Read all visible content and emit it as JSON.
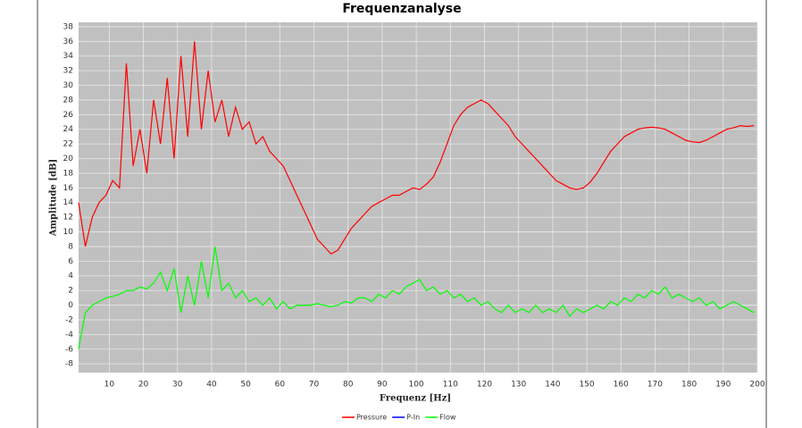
{
  "chart_data": {
    "type": "line",
    "title": "Frequenzanalyse",
    "x_label": "Frequenz [Hz]",
    "y_label": "Amplitude [dB]",
    "x": [
      1,
      3,
      5,
      7,
      9,
      11,
      13,
      15,
      17,
      19,
      21,
      23,
      25,
      27,
      29,
      31,
      33,
      35,
      37,
      39,
      41,
      43,
      45,
      47,
      49,
      51,
      53,
      55,
      57,
      59,
      61,
      63,
      65,
      67,
      69,
      71,
      73,
      75,
      77,
      79,
      81,
      83,
      85,
      87,
      89,
      91,
      93,
      95,
      97,
      99,
      101,
      103,
      105,
      107,
      109,
      111,
      113,
      115,
      117,
      119,
      121,
      123,
      125,
      127,
      129,
      131,
      133,
      135,
      137,
      139,
      141,
      143,
      145,
      147,
      149,
      151,
      153,
      155,
      157,
      159,
      161,
      163,
      165,
      167,
      169,
      171,
      173,
      175,
      177,
      179,
      181,
      183,
      185,
      187,
      189,
      191,
      193,
      195,
      197,
      199
    ],
    "series": [
      {
        "name": "Pressure",
        "color": "#ff0000",
        "values": [
          14,
          8,
          12,
          14,
          15,
          17,
          16,
          33,
          19,
          24,
          18,
          28,
          22,
          31,
          20,
          34,
          23,
          36,
          24,
          32,
          25,
          28,
          23,
          27,
          24,
          25,
          22,
          23,
          21,
          20,
          19,
          17,
          15,
          13,
          11,
          9,
          8,
          7,
          7.5,
          9,
          10.5,
          11.5,
          12.5,
          13.5,
          14,
          14.5,
          15,
          15,
          15.5,
          16,
          15.8,
          16.5,
          17.5,
          19.5,
          22,
          24.5,
          26,
          27,
          27.5,
          28,
          27.5,
          26.5,
          25.5,
          24.5,
          23,
          22,
          21,
          20,
          19,
          18,
          17,
          16.5,
          16,
          15.8,
          16,
          16.8,
          18,
          19.5,
          21,
          22,
          23,
          23.5,
          24,
          24.2,
          24.3,
          24.2,
          24,
          23.5,
          23,
          22.5,
          22.3,
          22.2,
          22.5,
          23,
          23.5,
          24,
          24.2,
          24.5,
          24.4,
          24.5
        ]
      },
      {
        "name": "P-In",
        "color": "#0000ff",
        "values": [
          null,
          null,
          null,
          null,
          null,
          null,
          null,
          null,
          null,
          null,
          null,
          null,
          null,
          null,
          null,
          null,
          null,
          null,
          null,
          null,
          null,
          null,
          null,
          null,
          null,
          null,
          null,
          null,
          null,
          null,
          null,
          null,
          null,
          null,
          null,
          null,
          null,
          null,
          null,
          null,
          null,
          null,
          null,
          null,
          null,
          null,
          null,
          null,
          null,
          null,
          null,
          null,
          null,
          null,
          null,
          null,
          null,
          null,
          null,
          null,
          null,
          null,
          null,
          null,
          null,
          null,
          null,
          null,
          null,
          null,
          null,
          null,
          null,
          null,
          null,
          null,
          null,
          null,
          null,
          null,
          null,
          null,
          null,
          null,
          null,
          null,
          null,
          null,
          null,
          null,
          null,
          null,
          null,
          null,
          null,
          null,
          null,
          null,
          null,
          null
        ]
      },
      {
        "name": "Flow",
        "color": "#00ff00",
        "values": [
          -6,
          -1,
          0,
          0.5,
          1,
          1.2,
          1.5,
          2,
          2,
          2.5,
          2.2,
          3,
          4.5,
          2,
          5,
          -1,
          4,
          0,
          6,
          1,
          8,
          2,
          3,
          1,
          2,
          0.5,
          1,
          0,
          1,
          -0.5,
          0.5,
          -0.5,
          0,
          0,
          0,
          0.2,
          0,
          -0.2,
          0,
          0.5,
          0.3,
          1,
          1,
          0.5,
          1.5,
          1,
          2,
          1.5,
          2.5,
          3,
          3.5,
          2,
          2.5,
          1.5,
          2,
          1,
          1.5,
          0.5,
          1,
          0,
          0.5,
          -0.5,
          -1,
          0,
          -1,
          -0.5,
          -1,
          0,
          -1,
          -0.5,
          -1,
          0,
          -1.5,
          -0.5,
          -1,
          -0.5,
          0,
          -0.5,
          0.5,
          0,
          1,
          0.5,
          1.5,
          1,
          2,
          1.5,
          2.5,
          1,
          1.5,
          1,
          0.5,
          1,
          0,
          0.5,
          -0.5,
          0,
          0.5,
          0,
          -0.5,
          -1
        ]
      }
    ],
    "xlim": [
      1,
      200
    ],
    "ylim": [
      -9.2,
      38.6
    ],
    "xticks": [
      10,
      20,
      30,
      40,
      50,
      60,
      70,
      80,
      90,
      100,
      110,
      120,
      130,
      140,
      150,
      160,
      170,
      180,
      190,
      200
    ],
    "yticks": [
      -8,
      -6,
      -4,
      -2,
      0,
      2,
      4,
      6,
      8,
      10,
      12,
      14,
      16,
      18,
      20,
      22,
      24,
      26,
      28,
      30,
      32,
      34,
      36,
      38
    ],
    "grid": true
  }
}
